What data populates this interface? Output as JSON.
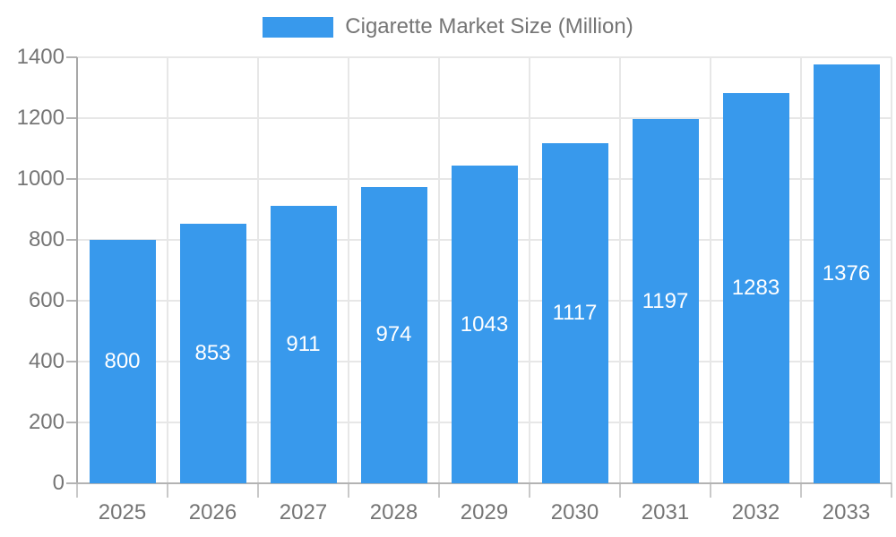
{
  "legend": {
    "label": "Cigarette Market Size (Million)"
  },
  "colors": {
    "bar": "#3899EC",
    "grid": "#E7E7E7",
    "axis": "#A8A8A8",
    "baseline": "#B3B3B3",
    "tick": "#C9C9C9",
    "tick_text": "#757575",
    "value_text": "#FFFFFF",
    "background": "#FFFFFF"
  },
  "chart_data": {
    "type": "bar",
    "title": "Cigarette Market Size (Million)",
    "categories": [
      "2025",
      "2026",
      "2027",
      "2028",
      "2029",
      "2030",
      "2031",
      "2032",
      "2033"
    ],
    "values": [
      800,
      853,
      911,
      974,
      1043,
      1117,
      1197,
      1283,
      1376
    ],
    "xlabel": "",
    "ylabel": "",
    "ylim": [
      0,
      1400
    ],
    "yticks": [
      0,
      200,
      400,
      600,
      800,
      1000,
      1200,
      1400
    ],
    "grid": true,
    "value_labels": "inside-center",
    "legend_position": "top-center"
  }
}
